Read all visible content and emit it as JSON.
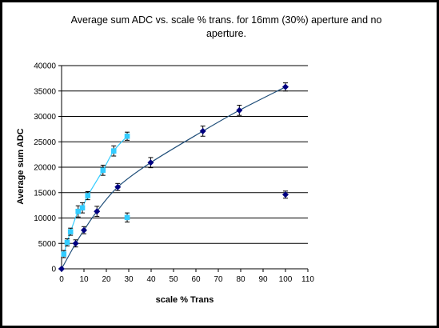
{
  "chart_data": {
    "type": "scatter",
    "title": "Average sum ADC vs. scale % trans. for 16mm (30%) aperture and no aperture.",
    "xlabel": "scale % Trans",
    "ylabel": "Average sum ADC",
    "xlim": [
      0,
      110
    ],
    "ylim": [
      0,
      40000
    ],
    "xticks": [
      0,
      10,
      20,
      30,
      40,
      50,
      60,
      70,
      80,
      90,
      100,
      110
    ],
    "yticks": [
      0,
      5000,
      10000,
      15000,
      20000,
      25000,
      30000,
      35000,
      40000
    ],
    "grid": "horizontal",
    "legend": "none",
    "series": [
      {
        "color": "#000080",
        "marker": "diamond",
        "line": true,
        "line_color": "#1f4e79",
        "points": [
          {
            "x": 0,
            "y": 0,
            "err": 0
          },
          {
            "x": 6.3,
            "y": 5000,
            "err": 700
          },
          {
            "x": 10,
            "y": 7600,
            "err": 700
          },
          {
            "x": 15.8,
            "y": 11300,
            "err": 1000
          },
          {
            "x": 25.1,
            "y": 16100,
            "err": 700
          },
          {
            "x": 39.8,
            "y": 20900,
            "err": 1000
          },
          {
            "x": 63.1,
            "y": 27100,
            "err": 1000
          },
          {
            "x": 79.4,
            "y": 31200,
            "err": 1000
          },
          {
            "x": 100,
            "y": 35800,
            "err": 800
          }
        ],
        "outliers": [
          {
            "x": 100,
            "y": 14600,
            "err": 700
          }
        ]
      },
      {
        "color": "#33ccff",
        "marker": "square",
        "line": true,
        "line_color": "#33ccff",
        "points": [
          {
            "x": 1,
            "y": 2900,
            "err": 700
          },
          {
            "x": 2.5,
            "y": 5200,
            "err": 700
          },
          {
            "x": 4,
            "y": 7300,
            "err": 700
          },
          {
            "x": 7.4,
            "y": 11300,
            "err": 1100
          },
          {
            "x": 9.3,
            "y": 12000,
            "err": 1000
          },
          {
            "x": 11.7,
            "y": 14400,
            "err": 800
          },
          {
            "x": 18.5,
            "y": 19400,
            "err": 1000
          },
          {
            "x": 23.3,
            "y": 23200,
            "err": 1000
          },
          {
            "x": 29.3,
            "y": 26100,
            "err": 800
          }
        ],
        "outliers": [
          {
            "x": 29.3,
            "y": 10100,
            "err": 900
          }
        ]
      }
    ]
  }
}
